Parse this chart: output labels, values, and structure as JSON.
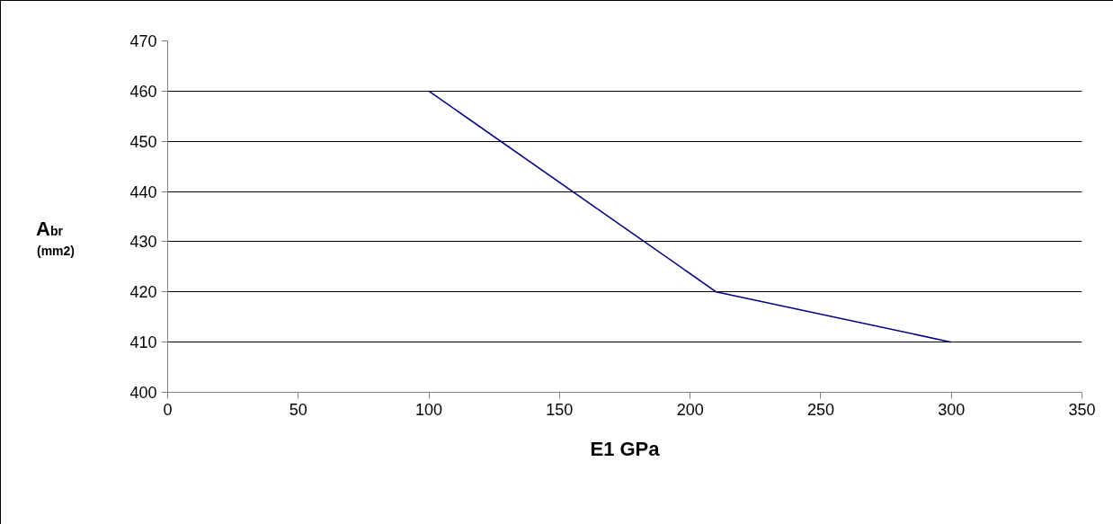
{
  "chart_data": {
    "type": "line",
    "xlabel": "E1 GPa",
    "ylabel": "A$_{br}$ (mm2)",
    "x": [
      100,
      210,
      300
    ],
    "series": [
      {
        "color": "#000080",
        "values": [
          460,
          420,
          410
        ]
      }
    ],
    "xlim": [
      0,
      350
    ],
    "xticks": [
      0,
      50,
      100,
      150,
      200,
      250,
      300,
      350
    ],
    "ylim": [
      400,
      470
    ],
    "yticks": [
      400,
      410,
      420,
      430,
      440,
      450,
      460,
      470
    ],
    "grid": "y",
    "marker": "none",
    "line_style": "solid"
  }
}
